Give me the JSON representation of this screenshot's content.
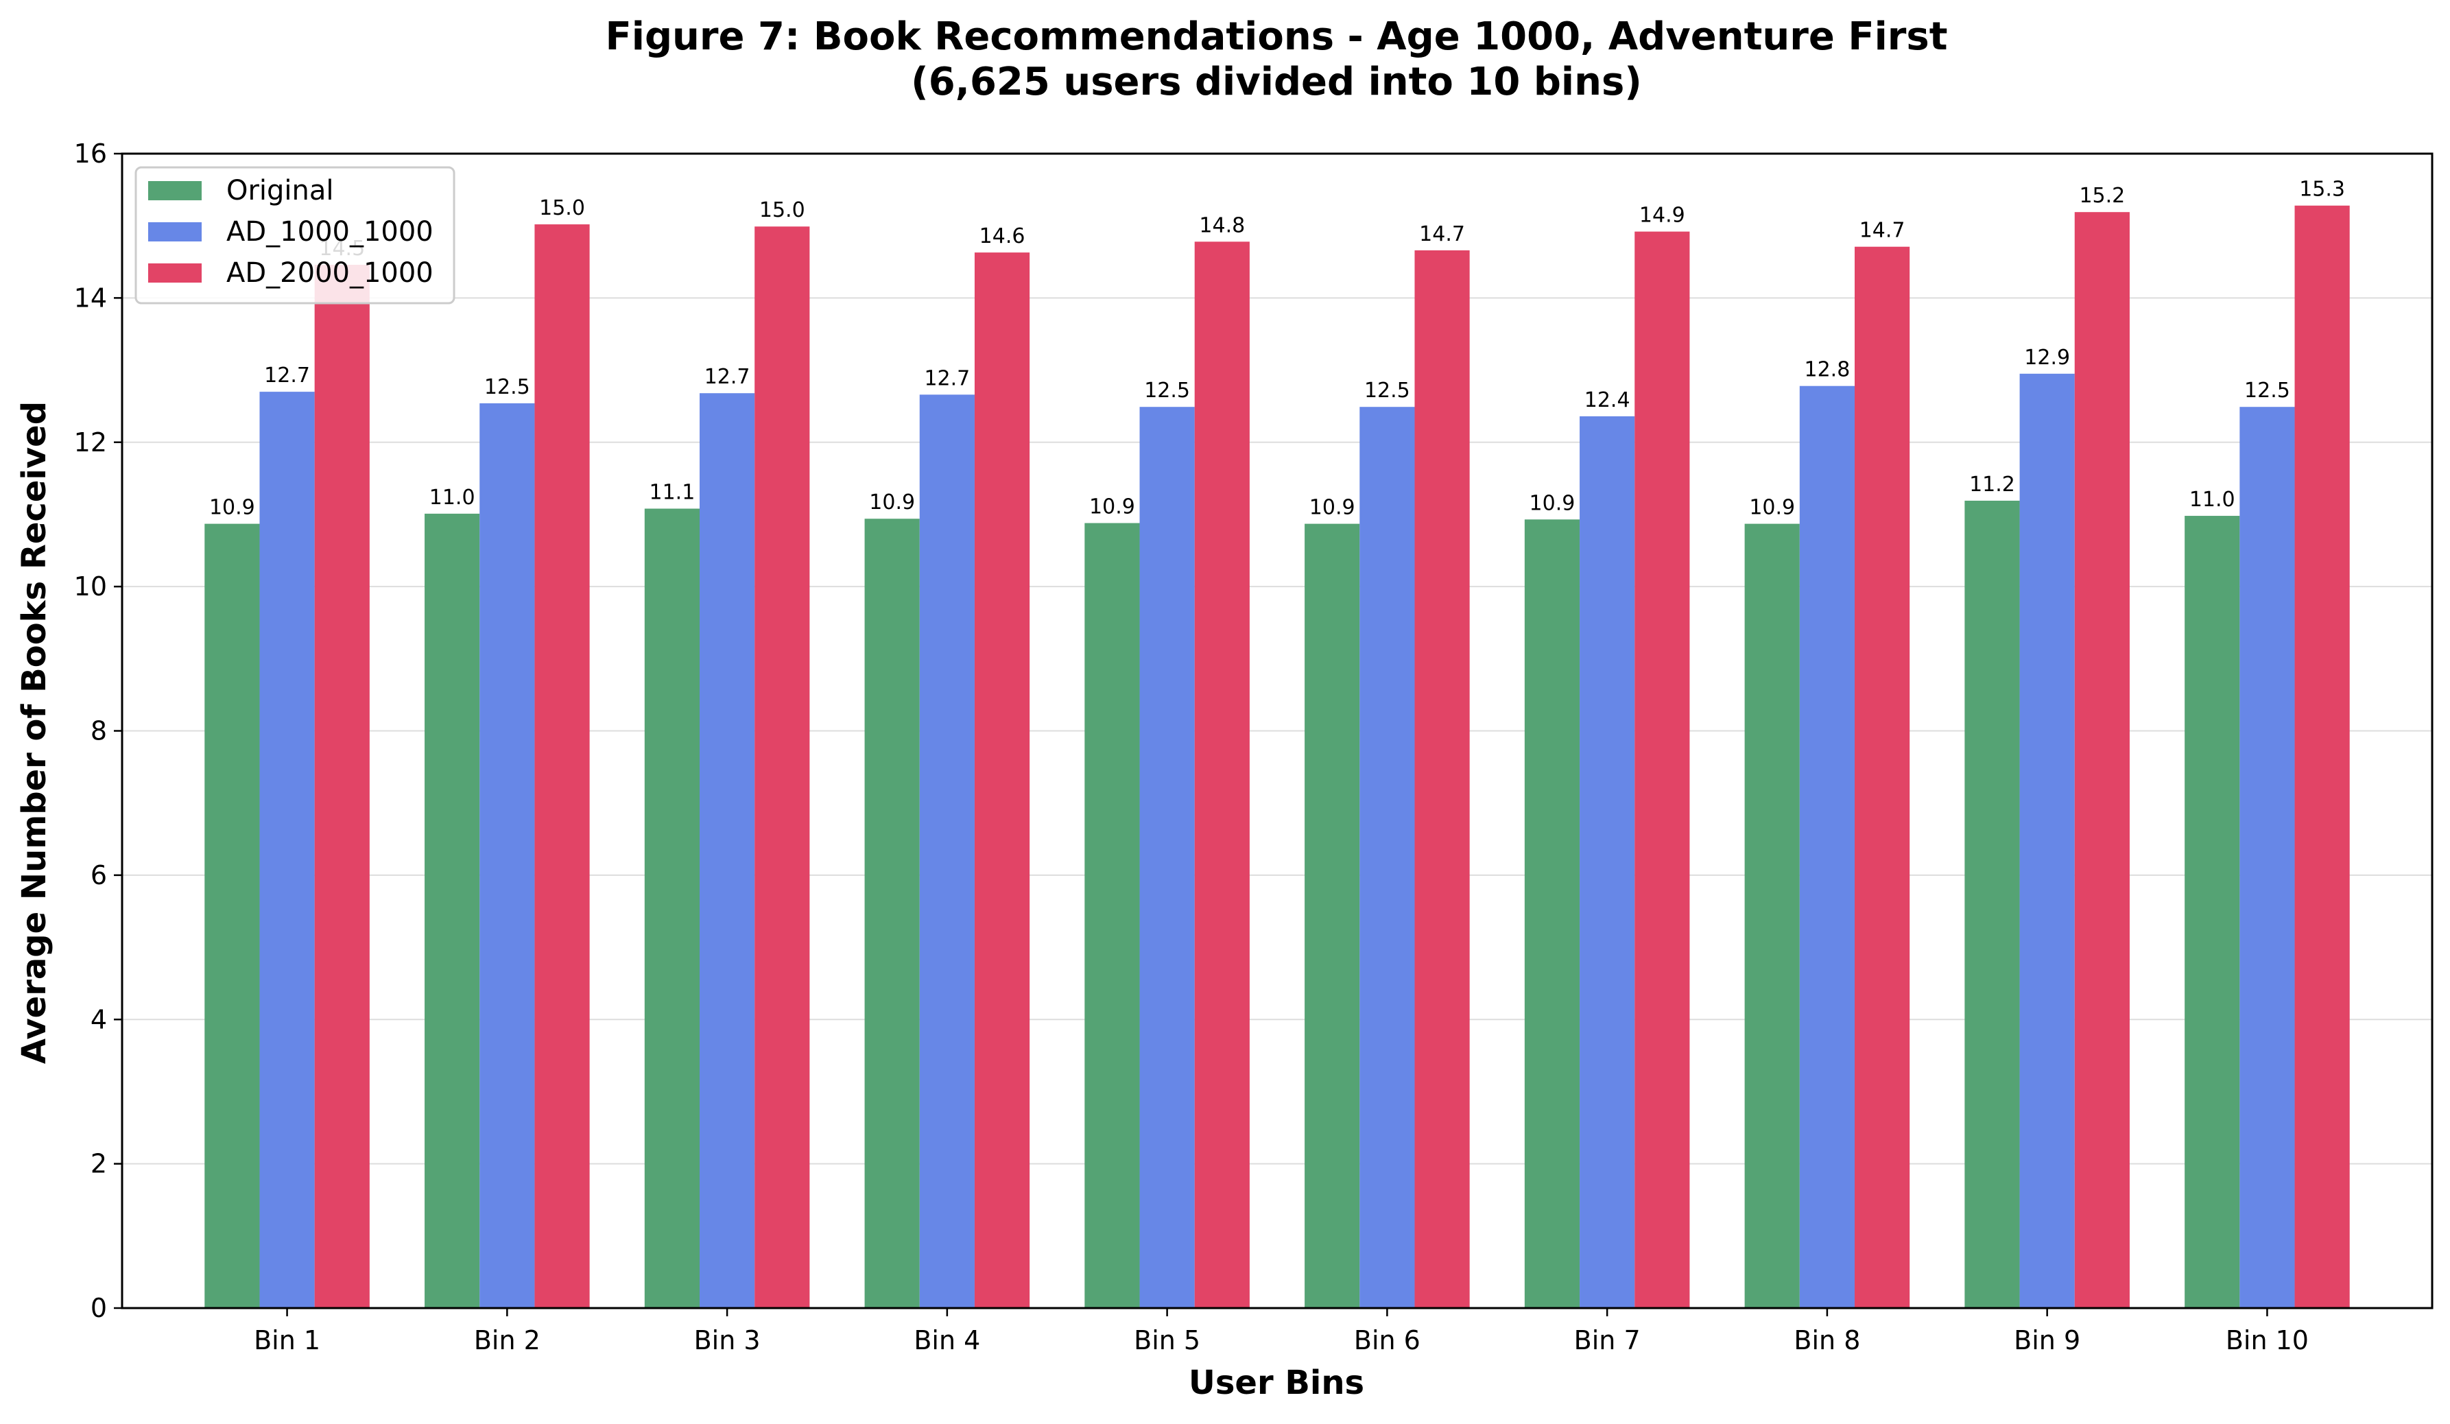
{
  "chart_data": {
    "type": "bar",
    "title": "Figure 7: Book Recommendations - Age 1000, Adventure First",
    "subtitle": "(6,625 users divided into 10 bins)",
    "xlabel": "User Bins",
    "ylabel": "Average Number of Books Received",
    "categories": [
      "Bin 1",
      "Bin 2",
      "Bin 3",
      "Bin 4",
      "Bin 5",
      "Bin 6",
      "Bin 7",
      "Bin 8",
      "Bin 9",
      "Bin 10"
    ],
    "ylim": [
      0,
      16
    ],
    "yticks": [
      "0",
      "2",
      "4",
      "6",
      "8",
      "10",
      "12",
      "14",
      "16"
    ],
    "grid": "horizontal",
    "legend_position": "top-left",
    "series": [
      {
        "name": "Original",
        "color": "#55a374",
        "values": [
          10.87,
          11.01,
          11.08,
          10.94,
          10.88,
          10.87,
          10.93,
          10.87,
          11.19,
          10.98
        ],
        "labels": [
          "10.9",
          "11.0",
          "11.1",
          "10.9",
          "10.9",
          "10.9",
          "10.9",
          "10.9",
          "11.2",
          "11.0"
        ]
      },
      {
        "name": "AD_1000_1000",
        "color": "#6787e7",
        "values": [
          12.7,
          12.54,
          12.68,
          12.66,
          12.49,
          12.49,
          12.36,
          12.78,
          12.95,
          12.49
        ],
        "labels": [
          "12.7",
          "12.5",
          "12.7",
          "12.7",
          "12.5",
          "12.5",
          "12.4",
          "12.8",
          "12.9",
          "12.5"
        ]
      },
      {
        "name": "AD_2000_1000",
        "color": "#e24466",
        "values": [
          14.46,
          15.02,
          14.99,
          14.63,
          14.78,
          14.66,
          14.92,
          14.71,
          15.19,
          15.28
        ],
        "labels": [
          "14.5",
          "15.0",
          "15.0",
          "14.6",
          "14.8",
          "14.7",
          "14.9",
          "14.7",
          "15.2",
          "15.3"
        ]
      }
    ]
  }
}
